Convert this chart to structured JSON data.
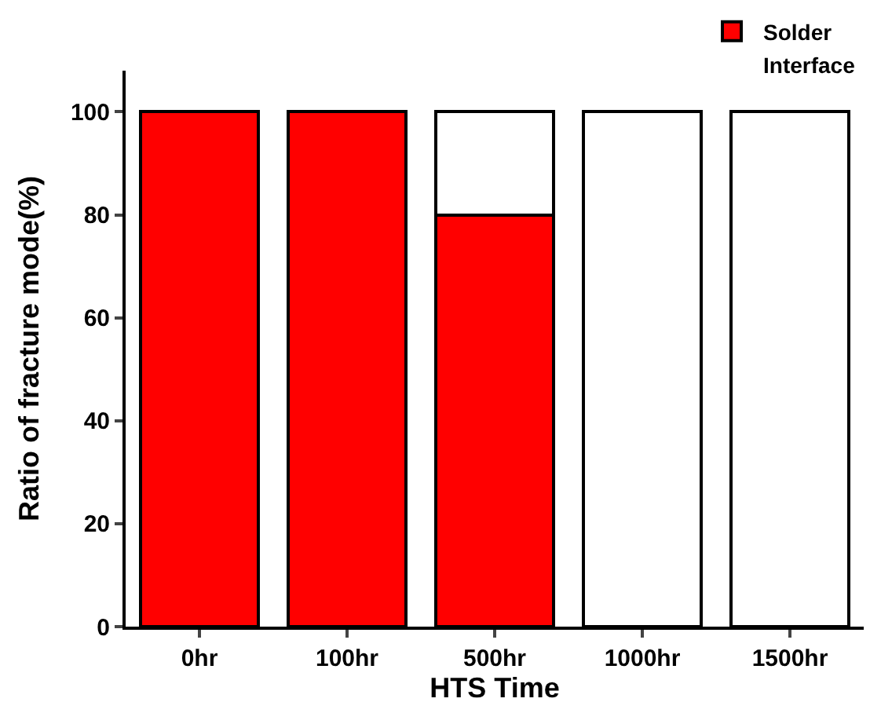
{
  "chart_data": {
    "type": "bar",
    "stacked": true,
    "xlabel": "HTS Time",
    "ylabel": "Ratio of fracture mode(%)",
    "categories": [
      "0hr",
      "100hr",
      "500hr",
      "1000hr",
      "1500hr"
    ],
    "series": [
      {
        "name": "Solder",
        "color": "#ff0000",
        "values": [
          100,
          100,
          80,
          0,
          0
        ]
      },
      {
        "name": "Interface",
        "color": "#ffffff",
        "values": [
          0,
          0,
          20,
          100,
          100
        ]
      }
    ],
    "ylim": [
      0,
      108
    ],
    "yticks": [
      0,
      20,
      40,
      60,
      80,
      100
    ],
    "legend": "top right"
  }
}
